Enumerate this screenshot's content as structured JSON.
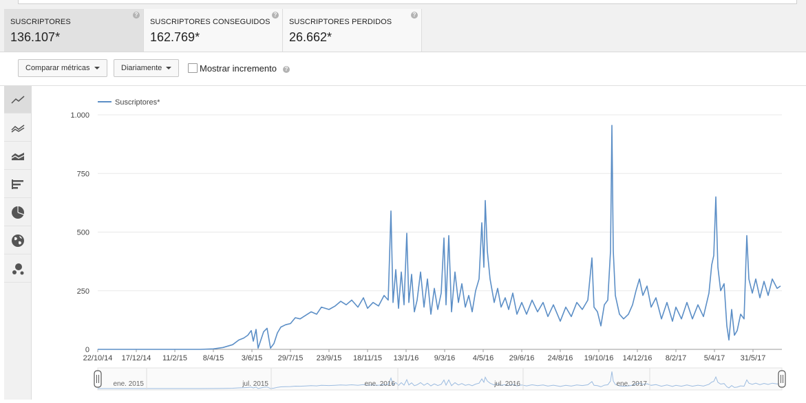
{
  "metrics": [
    {
      "label": "SUSCRIPTORES",
      "value": "136.107*",
      "active": true
    },
    {
      "label": "SUSCRIPTORES CONSEGUIDOS",
      "value": "162.769*",
      "active": false
    },
    {
      "label": "SUSCRIPTORES PERDIDOS",
      "value": "26.662*",
      "active": false
    }
  ],
  "help_glyph": "?",
  "toolbar": {
    "compare_label": "Comparar métricas",
    "period_label": "Diariamente",
    "show_increment_label": "Mostrar incremento",
    "show_increment_checked": false
  },
  "sidebar_icons": [
    "line-chart-icon",
    "multi-line-chart-icon",
    "stacked-area-chart-icon",
    "bar-chart-icon",
    "pie-chart-icon",
    "globe-map-icon",
    "bubble-chart-icon"
  ],
  "colors": {
    "series": "#5b8ec6",
    "grid": "#e8e8e8",
    "axis": "#999999"
  },
  "chart_data": {
    "type": "line",
    "legend": "Suscriptores*",
    "legend_position": "top-left",
    "grid": true,
    "ylim": [
      0,
      1000
    ],
    "yticks": [
      0,
      250,
      500,
      750,
      1000
    ],
    "ytick_labels": [
      "0",
      "250",
      "500",
      "750",
      "1.000"
    ],
    "xlim": [
      "2014-10-22",
      "2017-07-12"
    ],
    "xticks": [
      {
        "date": "2014-10-22",
        "label": "22/10/14"
      },
      {
        "date": "2014-12-17",
        "label": "17/12/14"
      },
      {
        "date": "2015-02-11",
        "label": "11/2/15"
      },
      {
        "date": "2015-04-08",
        "label": "8/4/15"
      },
      {
        "date": "2015-06-03",
        "label": "3/6/15"
      },
      {
        "date": "2015-07-29",
        "label": "29/7/15"
      },
      {
        "date": "2015-09-23",
        "label": "23/9/15"
      },
      {
        "date": "2015-11-18",
        "label": "18/11/15"
      },
      {
        "date": "2016-01-13",
        "label": "13/1/16"
      },
      {
        "date": "2016-03-09",
        "label": "9/3/16"
      },
      {
        "date": "2016-05-04",
        "label": "4/5/16"
      },
      {
        "date": "2016-06-29",
        "label": "29/6/16"
      },
      {
        "date": "2016-08-24",
        "label": "24/8/16"
      },
      {
        "date": "2016-10-19",
        "label": "19/10/16"
      },
      {
        "date": "2016-12-14",
        "label": "14/12/16"
      },
      {
        "date": "2017-02-08",
        "label": "8/2/17"
      },
      {
        "date": "2017-04-05",
        "label": "5/4/17"
      },
      {
        "date": "2017-05-31",
        "label": "31/5/17"
      }
    ],
    "series": [
      {
        "name": "Suscriptores*",
        "points": [
          [
            "2014-10-22",
            0
          ],
          [
            "2015-01-15",
            0
          ],
          [
            "2015-03-20",
            0
          ],
          [
            "2015-04-08",
            2
          ],
          [
            "2015-04-22",
            8
          ],
          [
            "2015-05-06",
            20
          ],
          [
            "2015-05-15",
            40
          ],
          [
            "2015-05-22",
            48
          ],
          [
            "2015-05-28",
            60
          ],
          [
            "2015-06-02",
            80
          ],
          [
            "2015-06-05",
            35
          ],
          [
            "2015-06-09",
            85
          ],
          [
            "2015-06-12",
            5
          ],
          [
            "2015-06-16",
            40
          ],
          [
            "2015-06-20",
            75
          ],
          [
            "2015-06-25",
            90
          ],
          [
            "2015-06-30",
            5
          ],
          [
            "2015-07-05",
            25
          ],
          [
            "2015-07-10",
            70
          ],
          [
            "2015-07-15",
            95
          ],
          [
            "2015-07-22",
            105
          ],
          [
            "2015-07-29",
            110
          ],
          [
            "2015-08-05",
            135
          ],
          [
            "2015-08-12",
            130
          ],
          [
            "2015-08-20",
            145
          ],
          [
            "2015-08-28",
            160
          ],
          [
            "2015-09-05",
            150
          ],
          [
            "2015-09-12",
            180
          ],
          [
            "2015-09-23",
            170
          ],
          [
            "2015-10-02",
            185
          ],
          [
            "2015-10-10",
            205
          ],
          [
            "2015-10-18",
            190
          ],
          [
            "2015-10-26",
            210
          ],
          [
            "2015-11-04",
            180
          ],
          [
            "2015-11-12",
            220
          ],
          [
            "2015-11-18",
            175
          ],
          [
            "2015-11-26",
            200
          ],
          [
            "2015-12-04",
            185
          ],
          [
            "2015-12-12",
            230
          ],
          [
            "2015-12-18",
            210
          ],
          [
            "2015-12-22",
            590
          ],
          [
            "2015-12-25",
            200
          ],
          [
            "2015-12-29",
            340
          ],
          [
            "2016-01-02",
            175
          ],
          [
            "2016-01-06",
            330
          ],
          [
            "2016-01-10",
            190
          ],
          [
            "2016-01-14",
            495
          ],
          [
            "2016-01-17",
            200
          ],
          [
            "2016-01-21",
            320
          ],
          [
            "2016-01-25",
            160
          ],
          [
            "2016-01-29",
            210
          ],
          [
            "2016-02-03",
            330
          ],
          [
            "2016-02-08",
            180
          ],
          [
            "2016-02-13",
            300
          ],
          [
            "2016-02-18",
            150
          ],
          [
            "2016-02-23",
            260
          ],
          [
            "2016-02-28",
            170
          ],
          [
            "2016-03-04",
            240
          ],
          [
            "2016-03-08",
            475
          ],
          [
            "2016-03-11",
            190
          ],
          [
            "2016-03-15",
            485
          ],
          [
            "2016-03-19",
            160
          ],
          [
            "2016-03-24",
            330
          ],
          [
            "2016-03-29",
            200
          ],
          [
            "2016-04-03",
            280
          ],
          [
            "2016-04-08",
            180
          ],
          [
            "2016-04-13",
            230
          ],
          [
            "2016-04-18",
            160
          ],
          [
            "2016-04-23",
            250
          ],
          [
            "2016-04-28",
            300
          ],
          [
            "2016-05-02",
            540
          ],
          [
            "2016-05-05",
            350
          ],
          [
            "2016-05-07",
            635
          ],
          [
            "2016-05-10",
            420
          ],
          [
            "2016-05-14",
            300
          ],
          [
            "2016-05-20",
            200
          ],
          [
            "2016-05-25",
            260
          ],
          [
            "2016-05-30",
            180
          ],
          [
            "2016-06-05",
            220
          ],
          [
            "2016-06-10",
            170
          ],
          [
            "2016-06-16",
            240
          ],
          [
            "2016-06-22",
            150
          ],
          [
            "2016-06-29",
            200
          ],
          [
            "2016-07-06",
            150
          ],
          [
            "2016-07-14",
            210
          ],
          [
            "2016-07-22",
            160
          ],
          [
            "2016-07-30",
            200
          ],
          [
            "2016-08-06",
            140
          ],
          [
            "2016-08-14",
            190
          ],
          [
            "2016-08-24",
            120
          ],
          [
            "2016-09-01",
            180
          ],
          [
            "2016-09-09",
            140
          ],
          [
            "2016-09-17",
            200
          ],
          [
            "2016-09-25",
            170
          ],
          [
            "2016-10-03",
            210
          ],
          [
            "2016-10-09",
            390
          ],
          [
            "2016-10-12",
            180
          ],
          [
            "2016-10-17",
            160
          ],
          [
            "2016-10-22",
            100
          ],
          [
            "2016-10-27",
            190
          ],
          [
            "2016-11-01",
            210
          ],
          [
            "2016-11-05",
            420
          ],
          [
            "2016-11-07",
            955
          ],
          [
            "2016-11-09",
            420
          ],
          [
            "2016-11-12",
            230
          ],
          [
            "2016-11-18",
            150
          ],
          [
            "2016-11-24",
            130
          ],
          [
            "2016-12-01",
            150
          ],
          [
            "2016-12-07",
            190
          ],
          [
            "2016-12-12",
            250
          ],
          [
            "2016-12-17",
            300
          ],
          [
            "2016-12-22",
            230
          ],
          [
            "2016-12-28",
            270
          ],
          [
            "2017-01-03",
            180
          ],
          [
            "2017-01-10",
            220
          ],
          [
            "2017-01-18",
            130
          ],
          [
            "2017-01-26",
            200
          ],
          [
            "2017-02-03",
            120
          ],
          [
            "2017-02-08",
            180
          ],
          [
            "2017-02-16",
            130
          ],
          [
            "2017-02-24",
            200
          ],
          [
            "2017-03-04",
            130
          ],
          [
            "2017-03-12",
            190
          ],
          [
            "2017-03-20",
            140
          ],
          [
            "2017-03-28",
            240
          ],
          [
            "2017-04-01",
            360
          ],
          [
            "2017-04-04",
            400
          ],
          [
            "2017-04-07",
            650
          ],
          [
            "2017-04-10",
            350
          ],
          [
            "2017-04-14",
            250
          ],
          [
            "2017-04-19",
            280
          ],
          [
            "2017-04-23",
            100
          ],
          [
            "2017-04-26",
            40
          ],
          [
            "2017-04-30",
            170
          ],
          [
            "2017-05-04",
            60
          ],
          [
            "2017-05-08",
            80
          ],
          [
            "2017-05-13",
            150
          ],
          [
            "2017-05-18",
            130
          ],
          [
            "2017-05-22",
            485
          ],
          [
            "2017-05-25",
            300
          ],
          [
            "2017-05-30",
            240
          ],
          [
            "2017-06-04",
            300
          ],
          [
            "2017-06-10",
            220
          ],
          [
            "2017-06-16",
            290
          ],
          [
            "2017-06-22",
            230
          ],
          [
            "2017-06-28",
            300
          ],
          [
            "2017-07-05",
            260
          ],
          [
            "2017-07-10",
            270
          ]
        ]
      }
    ],
    "navigator_labels": [
      "ene. 2015",
      "jul. 2015",
      "ene. 2016",
      "jul. 2016",
      "ene. 2017"
    ],
    "navigator_label_dates": [
      "2015-01-01",
      "2015-07-01",
      "2016-01-01",
      "2016-07-01",
      "2017-01-01"
    ]
  }
}
